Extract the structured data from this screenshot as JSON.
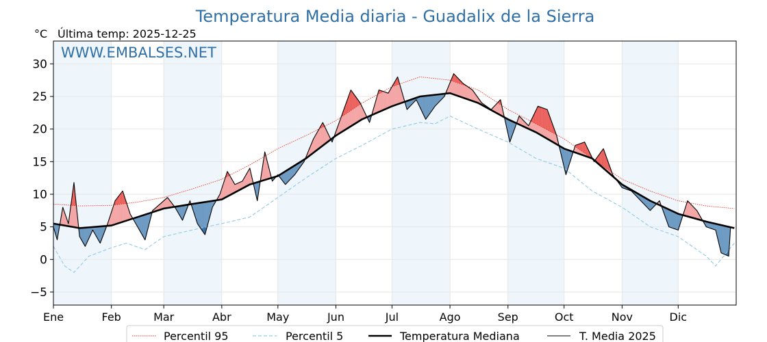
{
  "chart_data": {
    "type": "line",
    "title": "Temperatura Media diaria - Guadalix de la Sierra",
    "unit_label": "°C",
    "subtitle": "Última temp: 2025-12-25",
    "watermark": "WWW.EMBALSES.NET",
    "ylim": [
      -7,
      33.5
    ],
    "yticks": [
      -5,
      0,
      5,
      10,
      15,
      20,
      25,
      30
    ],
    "ytick_labels": [
      "−5",
      "0",
      "5",
      "10",
      "15",
      "20",
      "25",
      "30"
    ],
    "grid": true,
    "month_labels": [
      "Ene",
      "Feb",
      "Mar",
      "Abr",
      "May",
      "Jun",
      "Jul",
      "Ago",
      "Sep",
      "Oct",
      "Nov",
      "Dic"
    ],
    "month_start_days": [
      1,
      32,
      60,
      91,
      121,
      152,
      182,
      213,
      244,
      274,
      305,
      335
    ],
    "days_in_year": 365,
    "legend_position": "bottom",
    "colors": {
      "p95": "#e8321e",
      "p5": "#8ecae6",
      "median": "#000000",
      "current": "#000000",
      "above_fill": "#f4a6a6",
      "below_fill": "#6d9bc3",
      "extreme_high_fill": "#e8403a",
      "extreme_low_fill": "#1f5e96",
      "band_shade": "#eef5fb",
      "title": "#2f6fa5"
    },
    "series": [
      {
        "name": "Percentil 95",
        "key": "p95",
        "style": "dotted",
        "points": [
          [
            1,
            8.5
          ],
          [
            15,
            8.2
          ],
          [
            32,
            8.3
          ],
          [
            46,
            8.8
          ],
          [
            60,
            9.5
          ],
          [
            75,
            10.8
          ],
          [
            91,
            12.3
          ],
          [
            106,
            14.5
          ],
          [
            121,
            17.0
          ],
          [
            136,
            19.0
          ],
          [
            152,
            21.3
          ],
          [
            166,
            24.0
          ],
          [
            182,
            26.5
          ],
          [
            197,
            28.0
          ],
          [
            213,
            27.5
          ],
          [
            228,
            26.0
          ],
          [
            244,
            23.0
          ],
          [
            259,
            20.8
          ],
          [
            274,
            18.5
          ],
          [
            289,
            15.5
          ],
          [
            305,
            12.3
          ],
          [
            320,
            10.5
          ],
          [
            335,
            9.0
          ],
          [
            350,
            8.2
          ],
          [
            365,
            7.8
          ]
        ]
      },
      {
        "name": "Percentil 5",
        "key": "p5",
        "style": "dashed",
        "points": [
          [
            1,
            2.0
          ],
          [
            7,
            -1.0
          ],
          [
            12,
            -2.0
          ],
          [
            20,
            0.5
          ],
          [
            32,
            1.8
          ],
          [
            40,
            2.5
          ],
          [
            50,
            1.5
          ],
          [
            60,
            3.5
          ],
          [
            75,
            4.5
          ],
          [
            91,
            5.5
          ],
          [
            106,
            6.5
          ],
          [
            121,
            9.5
          ],
          [
            136,
            12.5
          ],
          [
            152,
            15.5
          ],
          [
            166,
            17.5
          ],
          [
            182,
            20.0
          ],
          [
            197,
            21.0
          ],
          [
            205,
            20.8
          ],
          [
            213,
            22.0
          ],
          [
            228,
            20.0
          ],
          [
            244,
            18.0
          ],
          [
            259,
            15.5
          ],
          [
            274,
            14.0
          ],
          [
            289,
            10.5
          ],
          [
            305,
            8.0
          ],
          [
            320,
            5.0
          ],
          [
            335,
            3.5
          ],
          [
            345,
            1.5
          ],
          [
            350,
            0.5
          ],
          [
            355,
            -1.0
          ],
          [
            365,
            2.5
          ]
        ]
      },
      {
        "name": "Temperatura Mediana",
        "key": "median",
        "style": "solid-thick",
        "points": [
          [
            1,
            5.5
          ],
          [
            15,
            4.8
          ],
          [
            32,
            5.2
          ],
          [
            46,
            6.5
          ],
          [
            60,
            7.8
          ],
          [
            75,
            8.5
          ],
          [
            91,
            9.2
          ],
          [
            106,
            11.5
          ],
          [
            121,
            12.8
          ],
          [
            136,
            15.5
          ],
          [
            152,
            19.0
          ],
          [
            166,
            21.5
          ],
          [
            182,
            23.5
          ],
          [
            197,
            25.0
          ],
          [
            213,
            25.5
          ],
          [
            228,
            24.0
          ],
          [
            244,
            21.5
          ],
          [
            259,
            19.5
          ],
          [
            274,
            17.0
          ],
          [
            289,
            15.5
          ],
          [
            305,
            11.5
          ],
          [
            320,
            9.0
          ],
          [
            335,
            7.0
          ],
          [
            350,
            5.8
          ],
          [
            365,
            4.8
          ]
        ]
      },
      {
        "name": "T. Media 2025",
        "key": "current",
        "style": "solid-thin",
        "points": [
          [
            1,
            5.0
          ],
          [
            3,
            3.0
          ],
          [
            6,
            8.0
          ],
          [
            9,
            5.5
          ],
          [
            12,
            11.8
          ],
          [
            15,
            3.5
          ],
          [
            18,
            2.0
          ],
          [
            22,
            4.5
          ],
          [
            26,
            2.5
          ],
          [
            30,
            5.5
          ],
          [
            34,
            9.0
          ],
          [
            38,
            10.5
          ],
          [
            42,
            7.0
          ],
          [
            46,
            5.0
          ],
          [
            50,
            3.0
          ],
          [
            54,
            7.5
          ],
          [
            58,
            8.5
          ],
          [
            62,
            9.5
          ],
          [
            66,
            8.0
          ],
          [
            70,
            6.0
          ],
          [
            74,
            9.0
          ],
          [
            78,
            5.5
          ],
          [
            82,
            3.8
          ],
          [
            86,
            8.0
          ],
          [
            90,
            10.0
          ],
          [
            94,
            13.5
          ],
          [
            98,
            11.5
          ],
          [
            102,
            12.0
          ],
          [
            106,
            14.0
          ],
          [
            110,
            9.0
          ],
          [
            114,
            16.5
          ],
          [
            118,
            12.0
          ],
          [
            121,
            13.0
          ],
          [
            125,
            11.5
          ],
          [
            130,
            13.0
          ],
          [
            135,
            15.0
          ],
          [
            140,
            18.5
          ],
          [
            145,
            21.0
          ],
          [
            150,
            18.0
          ],
          [
            155,
            22.0
          ],
          [
            160,
            26.0
          ],
          [
            165,
            24.0
          ],
          [
            170,
            21.0
          ],
          [
            175,
            26.0
          ],
          [
            180,
            25.5
          ],
          [
            185,
            28.0
          ],
          [
            190,
            23.0
          ],
          [
            195,
            24.5
          ],
          [
            200,
            21.5
          ],
          [
            205,
            23.5
          ],
          [
            210,
            25.0
          ],
          [
            215,
            28.5
          ],
          [
            220,
            27.0
          ],
          [
            225,
            26.0
          ],
          [
            230,
            24.0
          ],
          [
            235,
            23.0
          ],
          [
            240,
            24.5
          ],
          [
            245,
            18.0
          ],
          [
            250,
            22.0
          ],
          [
            255,
            20.5
          ],
          [
            260,
            23.5
          ],
          [
            265,
            23.0
          ],
          [
            270,
            19.0
          ],
          [
            275,
            13.0
          ],
          [
            280,
            17.5
          ],
          [
            285,
            18.0
          ],
          [
            290,
            15.0
          ],
          [
            295,
            17.0
          ],
          [
            300,
            13.0
          ],
          [
            305,
            11.0
          ],
          [
            310,
            10.5
          ],
          [
            315,
            9.0
          ],
          [
            320,
            7.5
          ],
          [
            325,
            9.0
          ],
          [
            330,
            5.0
          ],
          [
            335,
            4.5
          ],
          [
            340,
            9.0
          ],
          [
            345,
            7.5
          ],
          [
            350,
            5.0
          ],
          [
            355,
            4.5
          ],
          [
            358,
            1.0
          ],
          [
            362,
            0.5
          ],
          [
            363,
            5.0
          ]
        ]
      }
    ]
  }
}
